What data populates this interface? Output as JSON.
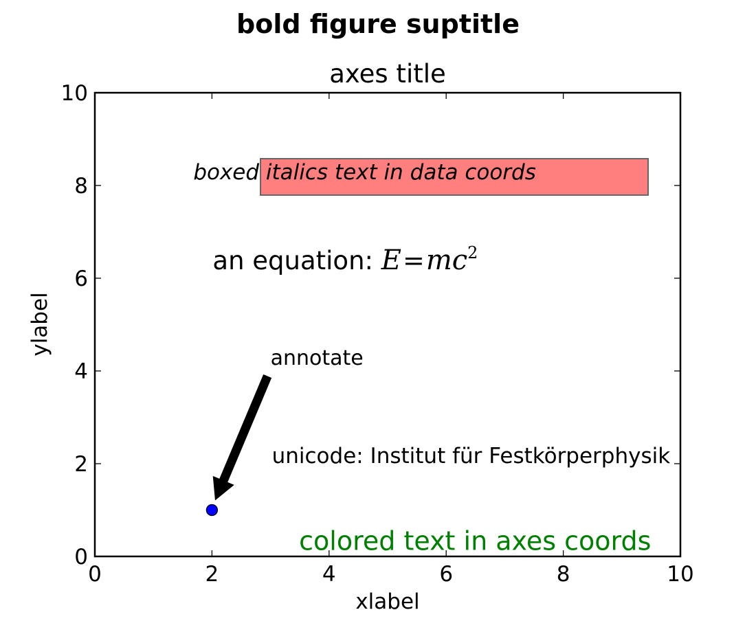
{
  "chart_data": {
    "type": "scatter",
    "suptitle": "bold figure suptitle",
    "title": "axes title",
    "xlabel": "xlabel",
    "ylabel": "ylabel",
    "xlim": [
      0,
      10
    ],
    "ylim": [
      0,
      10
    ],
    "xticks": [
      0,
      2,
      4,
      6,
      8,
      10
    ],
    "yticks": [
      0,
      2,
      4,
      6,
      8,
      10
    ],
    "grid": false,
    "series": [
      {
        "points": [
          {
            "x": 2,
            "y": 1
          }
        ],
        "color": "#0000ff"
      }
    ],
    "annotations": {
      "boxed": {
        "text": "boxed italics text in data coords",
        "x": 3,
        "y": 8,
        "facecolor": "#ff7f7f",
        "edgecolor": "#666666"
      },
      "equation": {
        "prefix": "an equation: ",
        "math_e": "E",
        "math_eq": "=",
        "math_mc": "mc",
        "math_exp": "2",
        "x": 2,
        "y": 6
      },
      "arrow": {
        "text": "annotate",
        "xy": [
          2,
          1
        ],
        "xytext": [
          3,
          4
        ]
      },
      "unicode": {
        "text": "unicode: Institut für Festkörperphysik",
        "x": 3,
        "y": 2
      },
      "colored": {
        "text": "colored text in axes coords",
        "ax": 0.95,
        "ay": 0.01,
        "color": "#008000"
      }
    }
  }
}
